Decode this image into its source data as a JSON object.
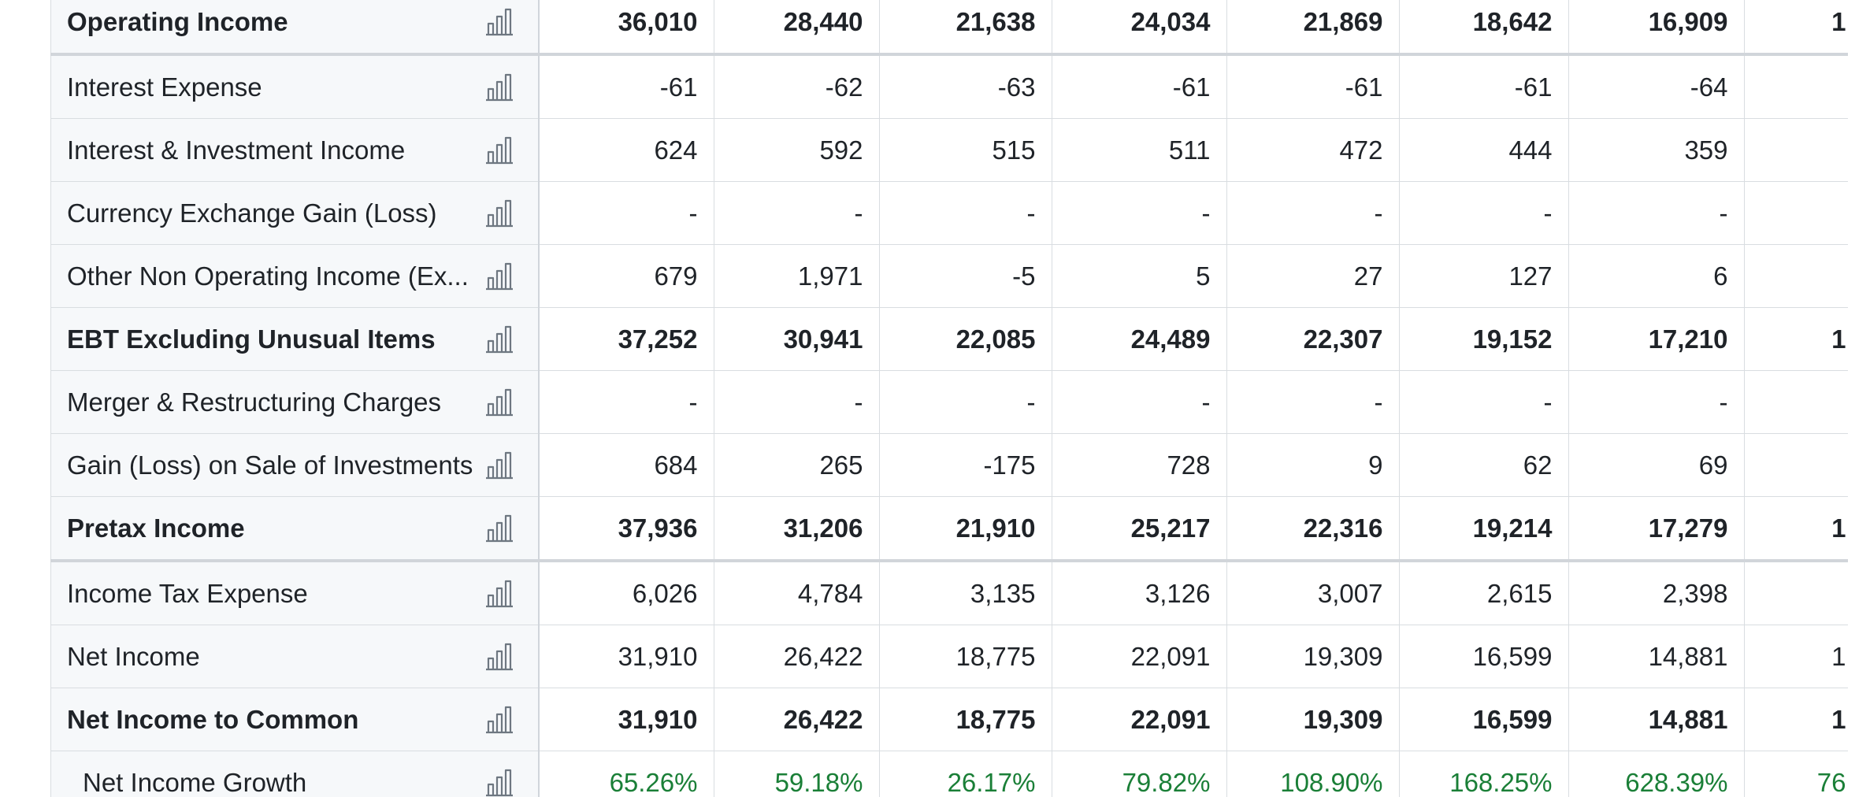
{
  "rows": [
    {
      "label": "Operating Income",
      "bold": true,
      "indent": false,
      "growth": false,
      "sep": true,
      "values": [
        "36,010",
        "28,440",
        "21,638",
        "24,034",
        "21,869",
        "18,642",
        "16,909",
        "1"
      ]
    },
    {
      "label": "Interest Expense",
      "bold": false,
      "indent": false,
      "growth": false,
      "sep": false,
      "values": [
        "-61",
        "-62",
        "-63",
        "-61",
        "-61",
        "-61",
        "-64",
        ""
      ]
    },
    {
      "label": "Interest & Investment Income",
      "bold": false,
      "indent": false,
      "growth": false,
      "sep": false,
      "values": [
        "624",
        "592",
        "515",
        "511",
        "472",
        "444",
        "359",
        ""
      ]
    },
    {
      "label": "Currency Exchange Gain (Loss)",
      "bold": false,
      "indent": false,
      "growth": false,
      "sep": false,
      "values": [
        "-",
        "-",
        "-",
        "-",
        "-",
        "-",
        "-",
        ""
      ]
    },
    {
      "label": "Other Non Operating Income (Ex...",
      "bold": false,
      "indent": false,
      "growth": false,
      "sep": false,
      "values": [
        "679",
        "1,971",
        "-5",
        "5",
        "27",
        "127",
        "6",
        ""
      ]
    },
    {
      "label": "EBT Excluding Unusual Items",
      "bold": true,
      "indent": false,
      "growth": false,
      "sep": false,
      "values": [
        "37,252",
        "30,941",
        "22,085",
        "24,489",
        "22,307",
        "19,152",
        "17,210",
        "1"
      ]
    },
    {
      "label": "Merger & Restructuring Charges",
      "bold": false,
      "indent": false,
      "growth": false,
      "sep": false,
      "values": [
        "-",
        "-",
        "-",
        "-",
        "-",
        "-",
        "-",
        ""
      ]
    },
    {
      "label": "Gain (Loss) on Sale of Investments",
      "bold": false,
      "indent": false,
      "growth": false,
      "sep": false,
      "values": [
        "684",
        "265",
        "-175",
        "728",
        "9",
        "62",
        "69",
        ""
      ]
    },
    {
      "label": "Pretax Income",
      "bold": true,
      "indent": false,
      "growth": false,
      "sep": true,
      "values": [
        "37,936",
        "31,206",
        "21,910",
        "25,217",
        "22,316",
        "19,214",
        "17,279",
        "1"
      ]
    },
    {
      "label": "Income Tax Expense",
      "bold": false,
      "indent": false,
      "growth": false,
      "sep": false,
      "values": [
        "6,026",
        "4,784",
        "3,135",
        "3,126",
        "3,007",
        "2,615",
        "2,398",
        ""
      ]
    },
    {
      "label": "Net Income",
      "bold": false,
      "indent": false,
      "growth": false,
      "sep": false,
      "values": [
        "31,910",
        "26,422",
        "18,775",
        "22,091",
        "19,309",
        "16,599",
        "14,881",
        "1"
      ]
    },
    {
      "label": "Net Income to Common",
      "bold": true,
      "indent": false,
      "growth": false,
      "sep": false,
      "values": [
        "31,910",
        "26,422",
        "18,775",
        "22,091",
        "19,309",
        "16,599",
        "14,881",
        "1"
      ]
    },
    {
      "label": "Net Income Growth",
      "bold": false,
      "indent": true,
      "growth": true,
      "sep": false,
      "values": [
        "65.26%",
        "59.18%",
        "26.17%",
        "79.82%",
        "108.90%",
        "168.25%",
        "628.39%",
        "76"
      ]
    }
  ],
  "icon_name": "bar-chart-icon",
  "colors": {
    "growth": "#1a7f37",
    "label_bg": "#f6f8fa",
    "grid": "#d9dde1"
  }
}
